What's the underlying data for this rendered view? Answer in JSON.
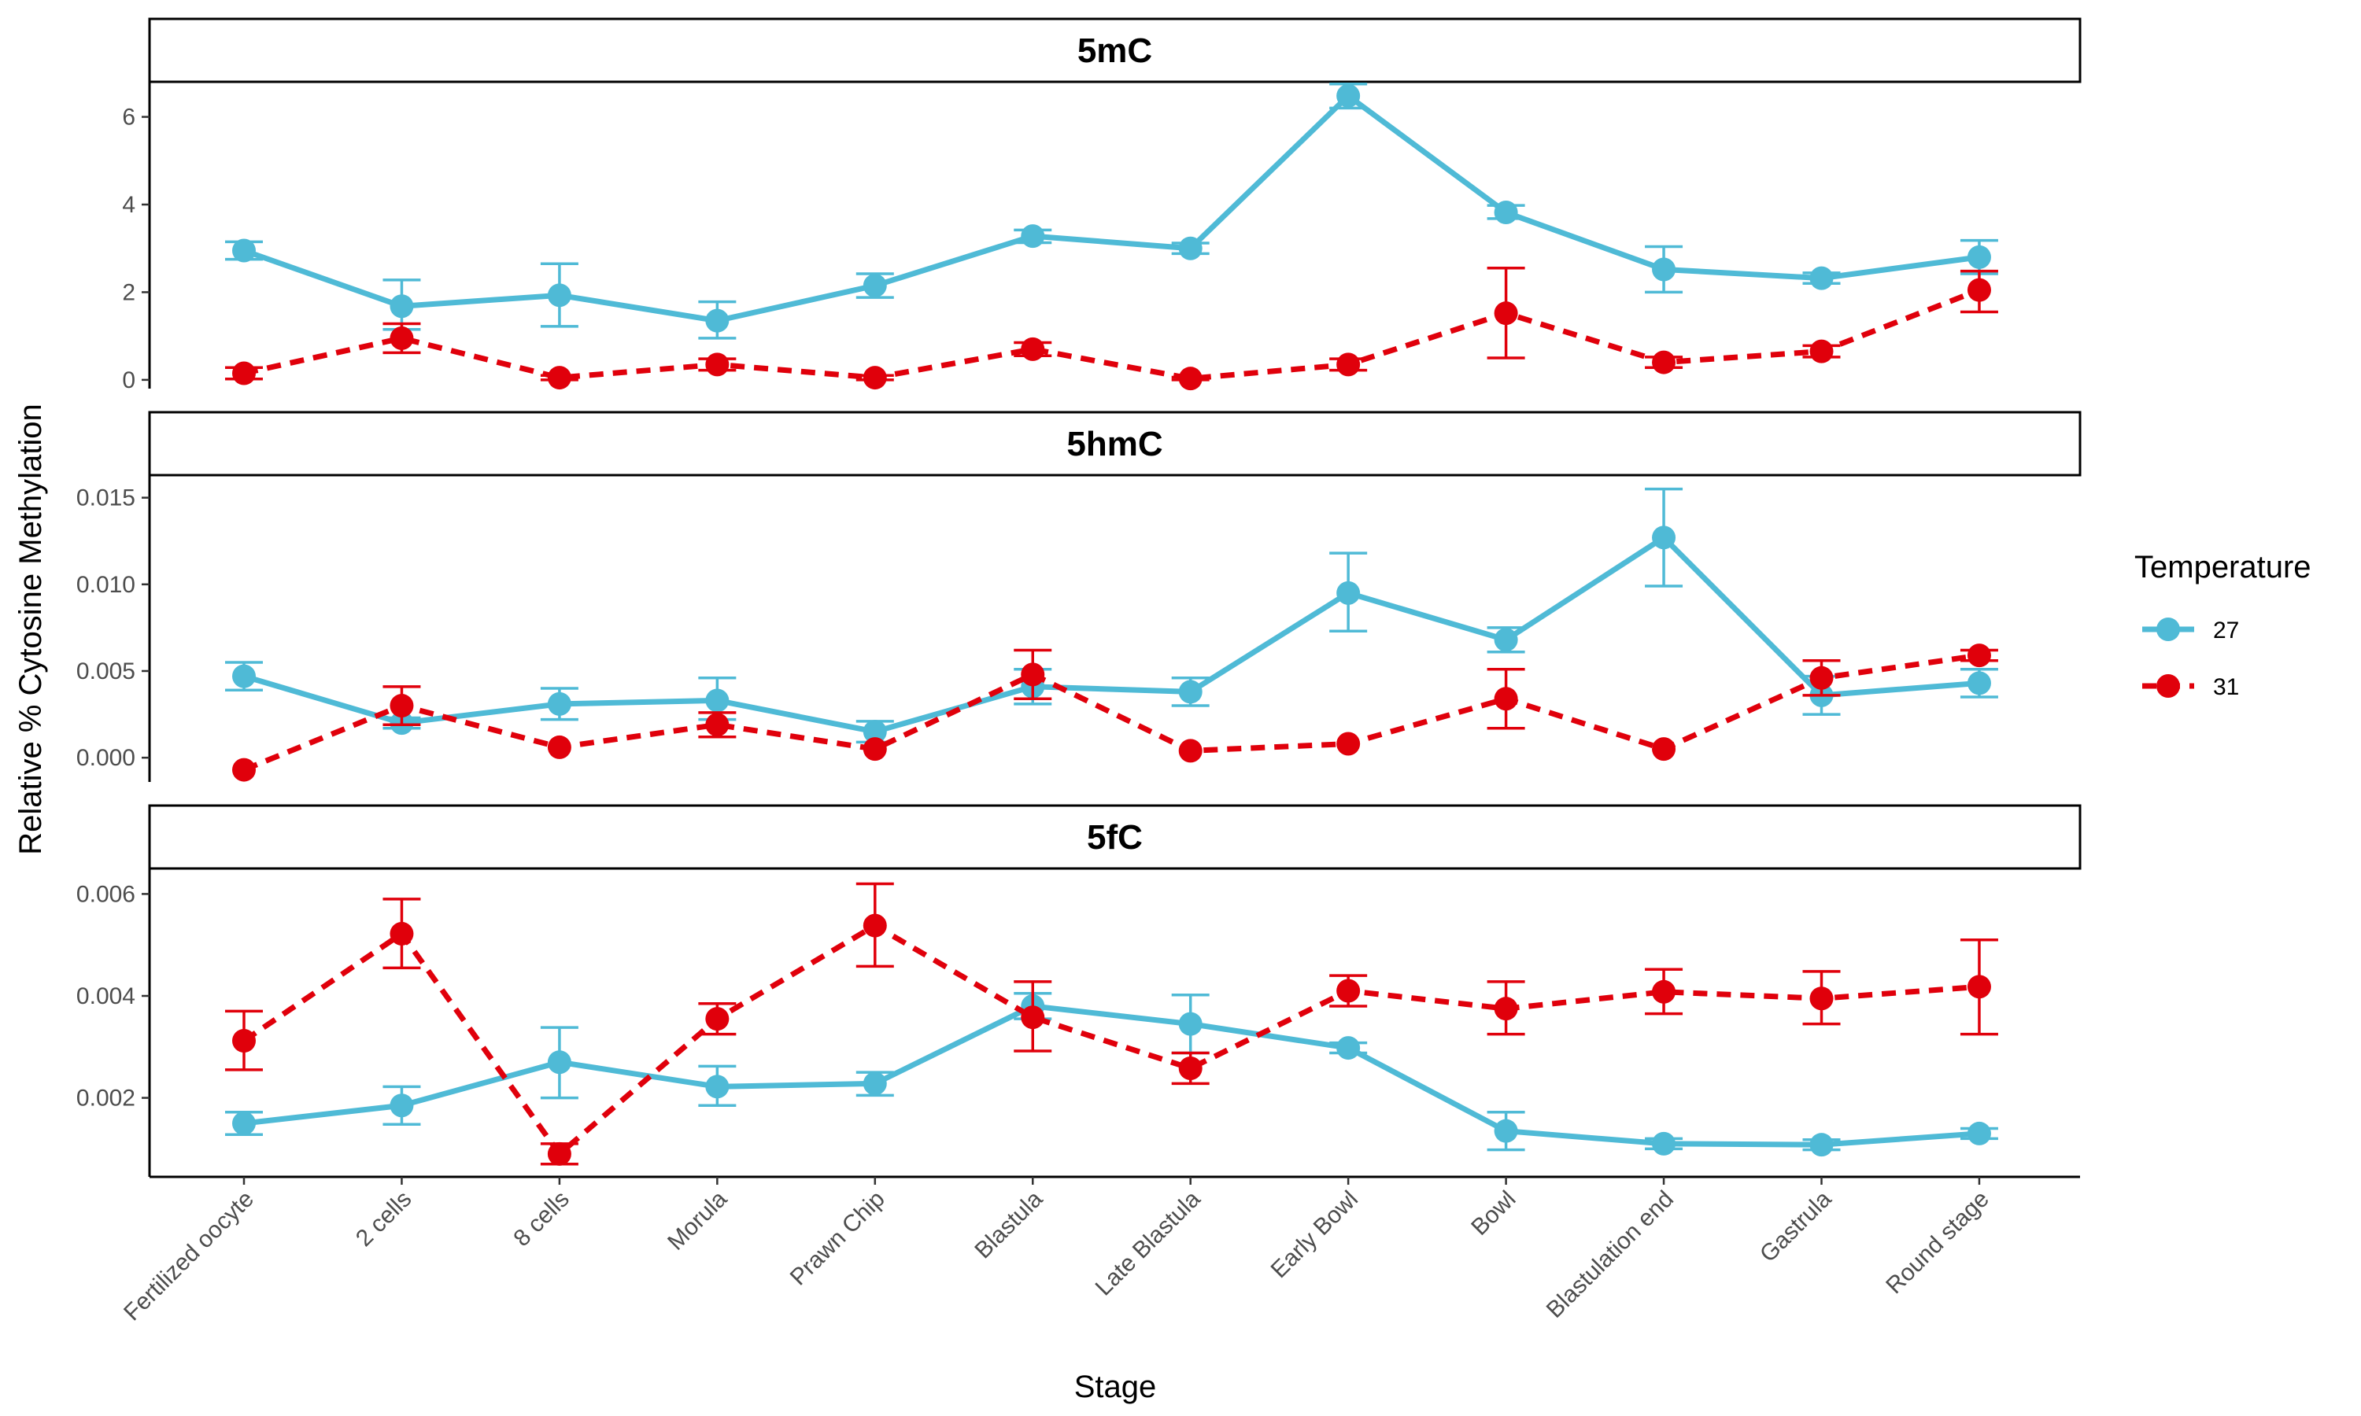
{
  "chart_data": {
    "type": "line",
    "ylabel": "Relative % Cytosine Methylation",
    "xlabel": "Stage",
    "categories": [
      "Fertilized oocyte",
      "2 cells",
      "8 cells",
      "Morula",
      "Prawn Chip",
      "Blastula",
      "Late Blastula",
      "Early Bowl",
      "Bowl",
      "Blastulation end",
      "Gastrula",
      "Round stage"
    ],
    "legend": {
      "title": "Temperature",
      "position": "right",
      "entries": [
        {
          "label": "27",
          "color": "#4FBAD6",
          "linestyle": "solid"
        },
        {
          "label": "31",
          "color": "#E0000B",
          "linestyle": "dashed"
        }
      ]
    },
    "grid": false,
    "panels": [
      {
        "title": "5mC",
        "ylim": [
          -0.2,
          6.8
        ],
        "yticks": [
          0,
          2,
          4,
          6
        ],
        "ytick_labels": [
          "0",
          "2",
          "4",
          "6"
        ],
        "series": [
          {
            "name": "27",
            "values": [
              2.95,
              1.68,
              1.93,
              1.35,
              2.15,
              3.28,
              3.0,
              6.48,
              3.82,
              2.52,
              2.32,
              2.8
            ],
            "err_low": [
              2.75,
              1.15,
              1.22,
              0.95,
              1.88,
              3.13,
              2.88,
              6.2,
              3.68,
              2.0,
              2.2,
              2.42
            ],
            "err_high": [
              3.15,
              2.28,
              2.65,
              1.78,
              2.42,
              3.42,
              3.12,
              6.75,
              3.98,
              3.04,
              2.44,
              3.18
            ]
          },
          {
            "name": "31",
            "values": [
              0.15,
              0.95,
              0.05,
              0.35,
              0.05,
              0.7,
              0.03,
              0.35,
              1.52,
              0.4,
              0.65,
              2.05
            ],
            "err_low": [
              0.02,
              0.62,
              0.0,
              0.22,
              0.0,
              0.55,
              0.0,
              0.22,
              0.5,
              0.28,
              0.52,
              1.55
            ],
            "err_high": [
              0.28,
              1.28,
              0.1,
              0.48,
              0.1,
              0.85,
              0.06,
              0.48,
              2.55,
              0.52,
              0.78,
              2.48
            ]
          }
        ]
      },
      {
        "title": "5hmC",
        "ylim": [
          -0.0014,
          0.0163
        ],
        "yticks": [
          0,
          0.005,
          0.01,
          0.015
        ],
        "ytick_labels": [
          "0.000",
          "0.005",
          "0.010",
          "0.015"
        ],
        "series": [
          {
            "name": "27",
            "values": [
              0.0047,
              0.002,
              0.0031,
              0.0033,
              0.0015,
              0.0041,
              0.0038,
              0.0095,
              0.0068,
              0.0127,
              0.0036,
              0.0043
            ],
            "err_low": [
              0.0039,
              0.0017,
              0.0022,
              0.0022,
              0.0009,
              0.0031,
              0.003,
              0.0073,
              0.0061,
              0.0099,
              0.0025,
              0.0035
            ],
            "err_high": [
              0.0055,
              0.0023,
              0.004,
              0.0046,
              0.0021,
              0.0051,
              0.0046,
              0.0118,
              0.0075,
              0.0155,
              0.0047,
              0.0051
            ]
          },
          {
            "name": "31",
            "values": [
              -0.0007,
              0.003,
              0.0006,
              0.0019,
              0.0005,
              0.0048,
              0.0004,
              0.0008,
              0.0034,
              0.0005,
              0.0046,
              0.0059
            ],
            "err_low": [
              -0.0007,
              0.0019,
              0.0006,
              0.0012,
              0.0005,
              0.0034,
              0.0004,
              0.0008,
              0.0017,
              0.0005,
              0.0036,
              0.0056
            ],
            "err_high": [
              -0.0007,
              0.0041,
              0.0006,
              0.0026,
              0.0005,
              0.0062,
              0.0004,
              0.0008,
              0.0051,
              0.0005,
              0.0056,
              0.0062
            ]
          }
        ]
      },
      {
        "title": "5fC",
        "ylim": [
          0.00045,
          0.0065
        ],
        "yticks": [
          0.002,
          0.004,
          0.006
        ],
        "ytick_labels": [
          "0.002",
          "0.004",
          "0.006"
        ],
        "series": [
          {
            "name": "27",
            "values": [
              0.0015,
              0.00185,
              0.0027,
              0.00222,
              0.00228,
              0.0038,
              0.00345,
              0.00298,
              0.00135,
              0.0011,
              0.00108,
              0.0013
            ],
            "err_low": [
              0.00128,
              0.00148,
              0.002,
              0.00185,
              0.00205,
              0.00355,
              0.00288,
              0.00288,
              0.00098,
              0.001,
              0.00098,
              0.0012
            ],
            "err_high": [
              0.00172,
              0.00222,
              0.00338,
              0.00262,
              0.0025,
              0.00405,
              0.00402,
              0.00308,
              0.00172,
              0.0012,
              0.00118,
              0.0014
            ]
          },
          {
            "name": "31",
            "values": [
              0.00312,
              0.00522,
              0.0009,
              0.00355,
              0.00538,
              0.00358,
              0.00258,
              0.0041,
              0.00375,
              0.00408,
              0.00395,
              0.00418
            ],
            "err_low": [
              0.00255,
              0.00455,
              0.0007,
              0.00325,
              0.00458,
              0.00292,
              0.00228,
              0.0038,
              0.00325,
              0.00365,
              0.00345,
              0.00325
            ],
            "err_high": [
              0.0037,
              0.0059,
              0.0011,
              0.00385,
              0.0062,
              0.00428,
              0.00288,
              0.0044,
              0.00428,
              0.00452,
              0.00448,
              0.0051
            ]
          }
        ]
      }
    ]
  }
}
